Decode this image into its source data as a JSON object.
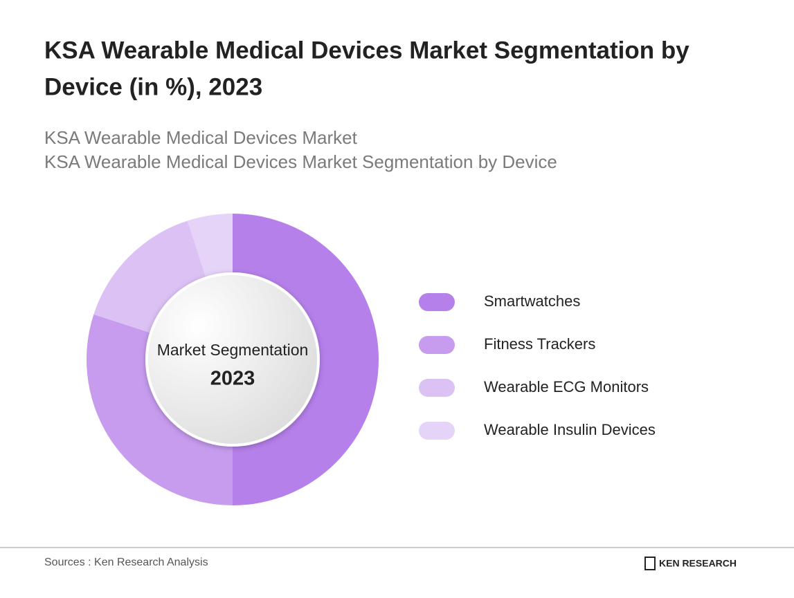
{
  "chart_data": {
    "type": "donut",
    "title": [
      "KSA Wearable Medical Devices Market Segmentation by",
      "Device (in %), 2023"
    ],
    "subtitle": [
      "KSA Wearable Medical Devices Market",
      "KSA Wearable Medical Devices Market Segmentation by Device"
    ],
    "center_label": "Market Segmentation",
    "center_year": "2023",
    "categories": [
      "Smartwatches",
      "Fitness Trackers",
      "Wearable ECG Monitors",
      "Wearable Insulin Devices"
    ],
    "values": [
      50,
      30,
      15,
      5
    ],
    "colors": [
      "#b580ea",
      "#c79cef",
      "#dcc1f5",
      "#e6d3f8"
    ]
  },
  "footer": {
    "source": "Sources : Ken Research Analysis",
    "brand": "KEN RESEARCH"
  }
}
